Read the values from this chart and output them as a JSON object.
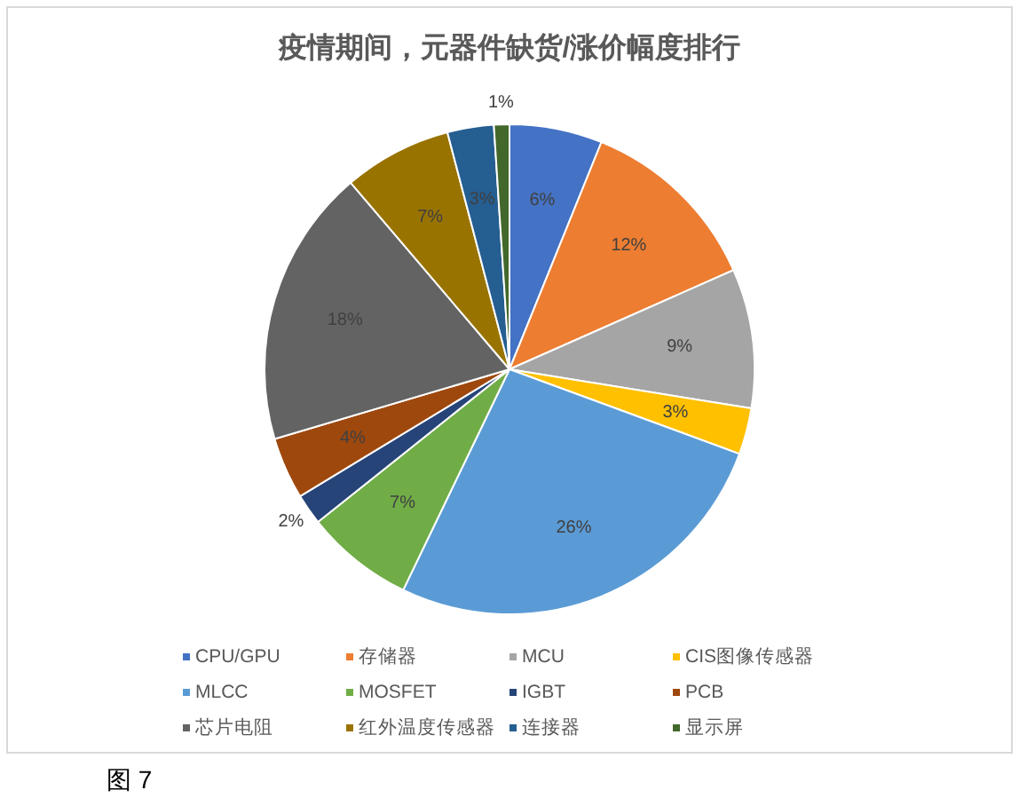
{
  "chart_data": {
    "type": "pie",
    "title": "疫情期间，元器件缺货/涨价幅度排行",
    "categories": [
      "CPU/GPU",
      "存储器",
      "MCU",
      "CIS图像传感器",
      "MLCC",
      "MOSFET",
      "IGBT",
      "PCB",
      "芯片电阻",
      "红外温度传感器",
      "连接器",
      "显示屏"
    ],
    "values": [
      6,
      12,
      9,
      3,
      26,
      7,
      2,
      4,
      18,
      7,
      3,
      1
    ],
    "colors": [
      "#4472c4",
      "#ed7d31",
      "#a5a5a5",
      "#ffc000",
      "#5b9bd5",
      "#70ad47",
      "#264478",
      "#9e480e",
      "#636363",
      "#997300",
      "#255e91",
      "#43682b"
    ],
    "value_labels": [
      "6%",
      "12%",
      "9%",
      "3%",
      "26%",
      "7%",
      "2%",
      "4%",
      "18%",
      "7%",
      "3%",
      "1%"
    ],
    "legend": "bottom",
    "annotations": [
      "图 7"
    ]
  }
}
